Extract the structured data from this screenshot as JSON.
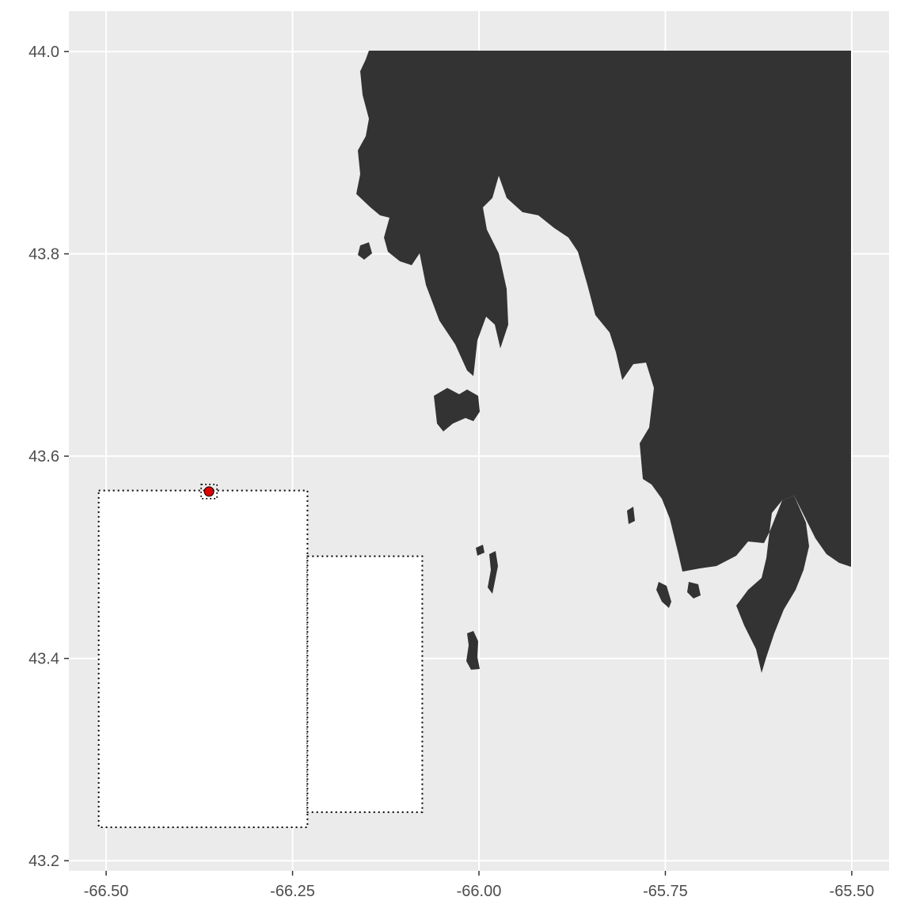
{
  "map": {
    "panel_background": "#ebebeb",
    "grid_color": "#ffffff",
    "land_color": "#333333",
    "marker_color": "#e00000",
    "box_fill": "#ffffff",
    "box_border": "#000000",
    "x_ticks": [
      {
        "value": -66.5,
        "label": "-66.50"
      },
      {
        "value": -66.25,
        "label": "-66.25"
      },
      {
        "value": -66.0,
        "label": "-66.00"
      },
      {
        "value": -65.75,
        "label": "-65.75"
      },
      {
        "value": -65.5,
        "label": "-65.50"
      }
    ],
    "y_ticks": [
      {
        "value": 44.0,
        "label": "44.0"
      },
      {
        "value": 43.8,
        "label": "43.8"
      },
      {
        "value": 43.6,
        "label": "43.6"
      },
      {
        "value": 43.4,
        "label": "43.4"
      },
      {
        "value": 43.2,
        "label": "43.2"
      }
    ],
    "xlim": [
      -66.55,
      -65.45
    ],
    "ylim": [
      43.19,
      44.04
    ],
    "boxes": [
      {
        "lon_min": -66.51,
        "lon_max": -66.23,
        "lat_min": 43.233,
        "lat_max": 43.566
      },
      {
        "lon_min": -66.23,
        "lon_max": -66.076,
        "lat_min": 43.248,
        "lat_max": 43.501
      }
    ],
    "marker": {
      "lon": -66.362,
      "lat": 43.565
    }
  }
}
